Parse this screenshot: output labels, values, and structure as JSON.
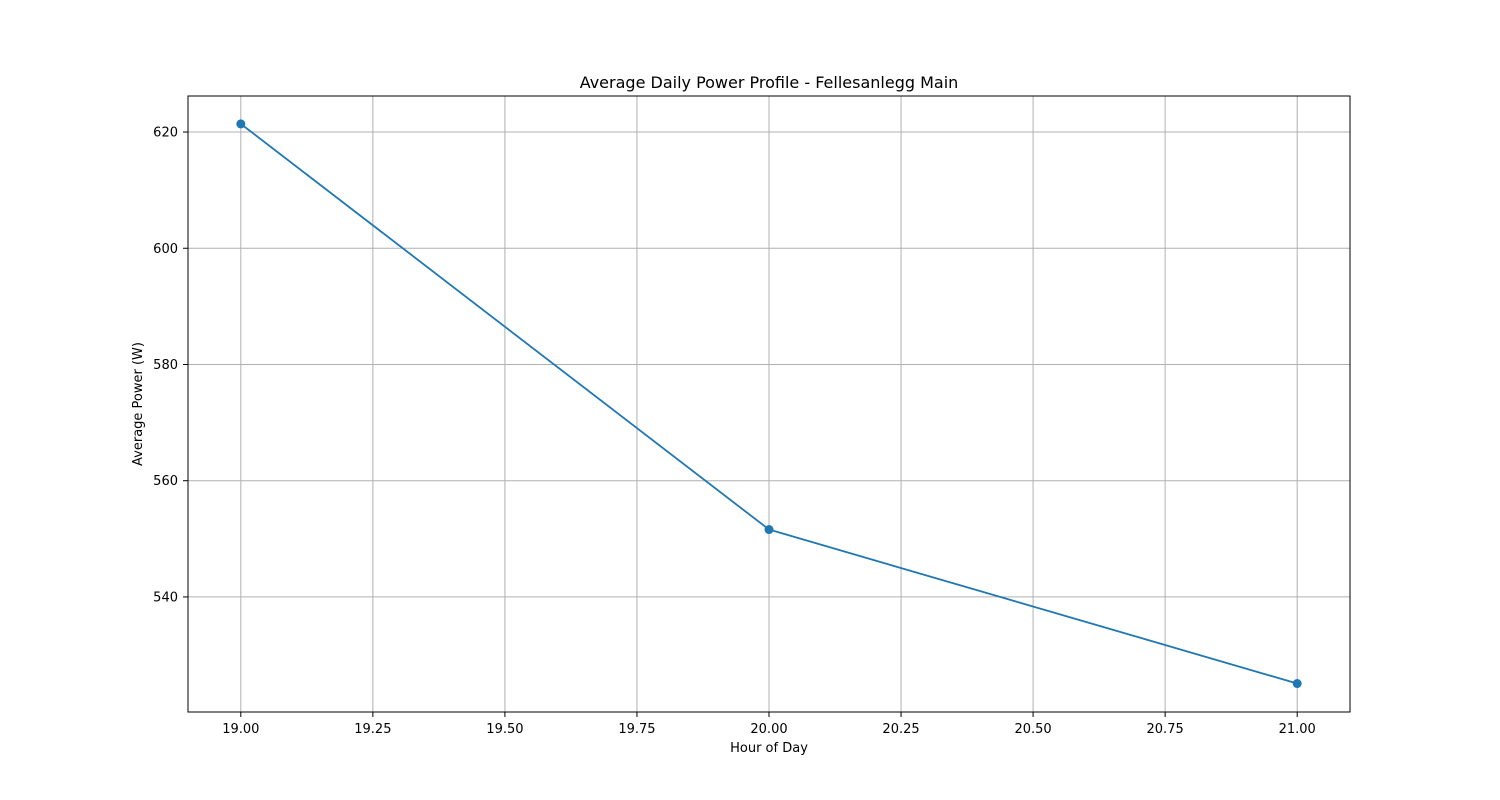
{
  "chart_data": {
    "type": "line",
    "title": "Average Daily Power Profile - Fellesanlegg Main",
    "xlabel": "Hour of Day",
    "ylabel": "Average Power (W)",
    "xlim": [
      18.9,
      21.1
    ],
    "ylim": [
      520.2,
      626.2
    ],
    "xticks": [
      19.0,
      19.25,
      19.5,
      19.75,
      20.0,
      20.25,
      20.5,
      20.75,
      21.0
    ],
    "xtick_labels": [
      "19.00",
      "19.25",
      "19.50",
      "19.75",
      "20.00",
      "20.25",
      "20.50",
      "20.75",
      "21.00"
    ],
    "yticks": [
      540,
      560,
      580,
      600,
      620
    ],
    "ytick_labels": [
      "540",
      "560",
      "580",
      "600",
      "620"
    ],
    "grid": true,
    "series": [
      {
        "x": [
          19,
          20,
          21
        ],
        "y": [
          621.4,
          551.6,
          525.1
        ],
        "color": "#1f77b4",
        "marker": "circle"
      }
    ]
  }
}
